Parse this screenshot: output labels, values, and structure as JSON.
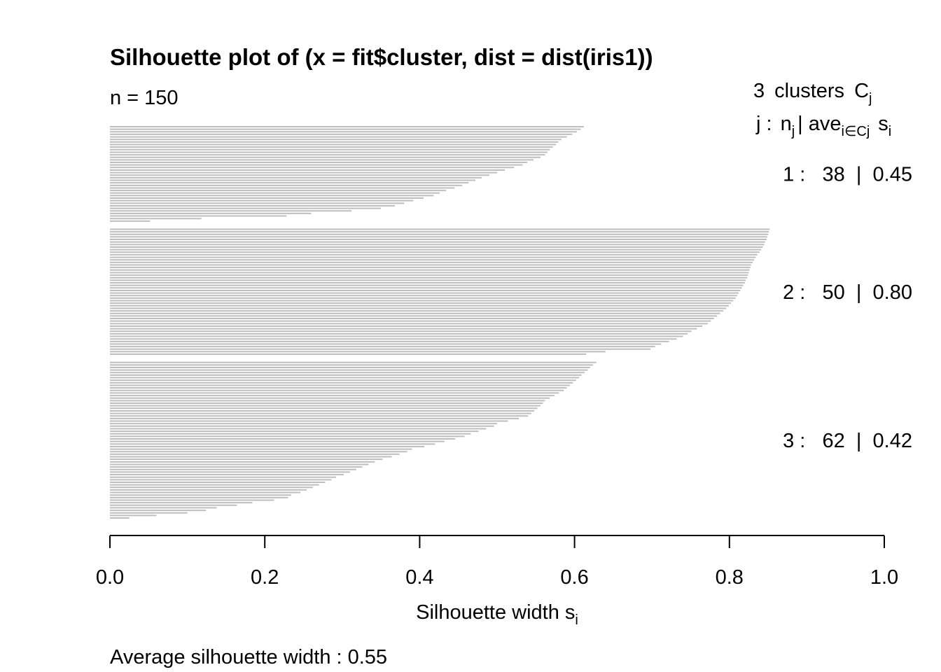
{
  "chart_data": {
    "type": "bar",
    "orientation": "horizontal",
    "title": "Silhouette plot of (x = fit$cluster, dist = dist(iris1))",
    "n_label": "n = 150",
    "legend_header": {
      "count": "3",
      "clusters_word": "clusters",
      "C": "C",
      "j_sub": "j",
      "line2_j": "j :",
      "line2_n": "n",
      "line2_bar": "| ave",
      "line2_sub": "i∈Cj",
      "line2_s": "s",
      "line2_s_sub": "i"
    },
    "xlabel": "Silhouette width s",
    "xlabel_sub": "i",
    "footer": "Average silhouette width :  0.55",
    "xlim": [
      0,
      1
    ],
    "xticks": [
      "0.0",
      "0.2",
      "0.4",
      "0.6",
      "0.8",
      "1.0"
    ],
    "bar_color": "#bebebe",
    "clusters": [
      {
        "label": "1 :   38  |  0.45",
        "j": 1,
        "n": 38,
        "avg": 0.45,
        "values": [
          0.612,
          0.608,
          0.603,
          0.597,
          0.59,
          0.583,
          0.579,
          0.576,
          0.572,
          0.568,
          0.565,
          0.562,
          0.556,
          0.547,
          0.539,
          0.533,
          0.522,
          0.51,
          0.5,
          0.49,
          0.48,
          0.472,
          0.463,
          0.455,
          0.445,
          0.434,
          0.426,
          0.418,
          0.405,
          0.392,
          0.38,
          0.368,
          0.35,
          0.312,
          0.26,
          0.228,
          0.118,
          0.052
        ]
      },
      {
        "label": "2 :   50  |  0.80",
        "j": 2,
        "n": 50,
        "avg": 0.8,
        "values": [
          0.852,
          0.851,
          0.85,
          0.849,
          0.848,
          0.846,
          0.845,
          0.843,
          0.841,
          0.839,
          0.836,
          0.834,
          0.832,
          0.83,
          0.828,
          0.827,
          0.826,
          0.825,
          0.824,
          0.823,
          0.821,
          0.82,
          0.818,
          0.816,
          0.814,
          0.812,
          0.81,
          0.808,
          0.805,
          0.802,
          0.799,
          0.796,
          0.792,
          0.788,
          0.784,
          0.78,
          0.776,
          0.772,
          0.765,
          0.758,
          0.751,
          0.746,
          0.74,
          0.732,
          0.722,
          0.712,
          0.704,
          0.698,
          0.64,
          0.615
        ]
      },
      {
        "label": "3 :   62  |  0.42",
        "j": 3,
        "n": 62,
        "avg": 0.42,
        "values": [
          0.628,
          0.624,
          0.62,
          0.617,
          0.613,
          0.609,
          0.606,
          0.602,
          0.598,
          0.594,
          0.59,
          0.586,
          0.58,
          0.574,
          0.568,
          0.562,
          0.559,
          0.556,
          0.552,
          0.548,
          0.544,
          0.54,
          0.528,
          0.514,
          0.5,
          0.496,
          0.486,
          0.476,
          0.466,
          0.458,
          0.446,
          0.432,
          0.42,
          0.406,
          0.39,
          0.384,
          0.374,
          0.364,
          0.352,
          0.342,
          0.334,
          0.326,
          0.318,
          0.31,
          0.302,
          0.292,
          0.286,
          0.278,
          0.27,
          0.262,
          0.254,
          0.246,
          0.234,
          0.23,
          0.212,
          0.184,
          0.164,
          0.138,
          0.124,
          0.1,
          0.06,
          0.025
        ]
      }
    ]
  }
}
